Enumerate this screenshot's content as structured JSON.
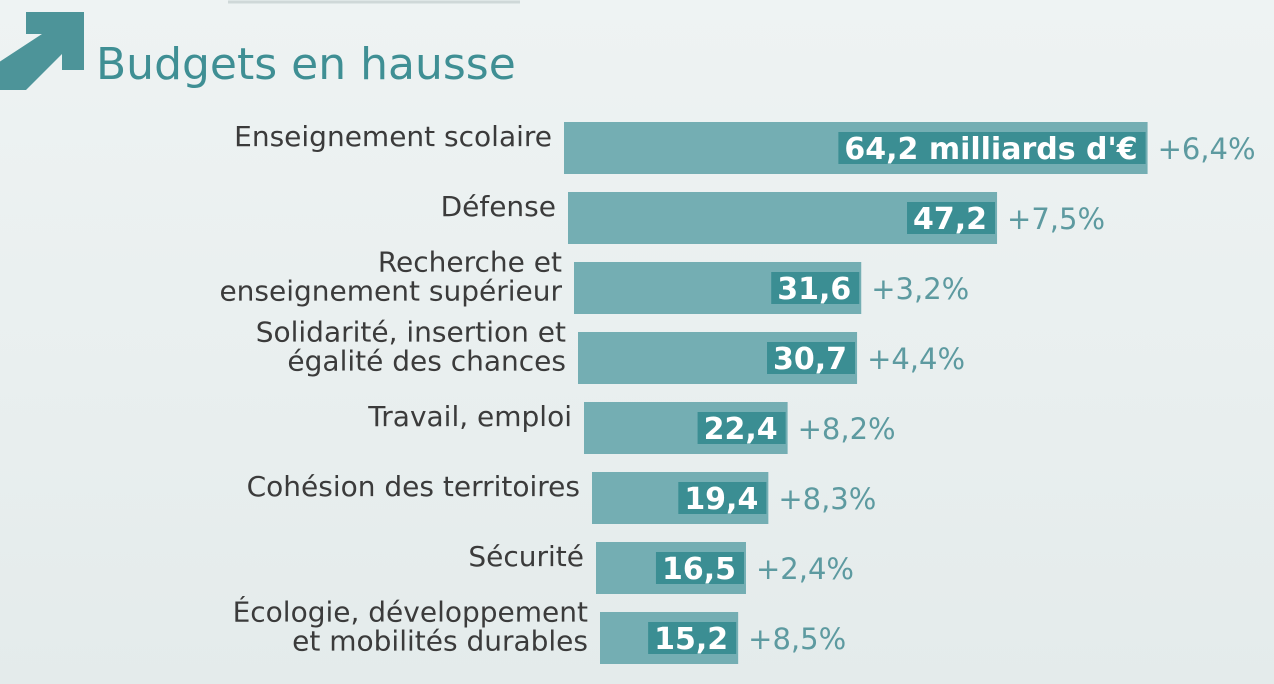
{
  "chart_data": {
    "type": "bar",
    "orientation": "horizontal",
    "title": "Budgets en hausse",
    "title_icon": "up-right-arrow-icon",
    "unit_label": "milliards d'€",
    "categories": [
      [
        "Enseignement scolaire"
      ],
      [
        "Défense"
      ],
      [
        "Recherche et",
        "enseignement supérieur"
      ],
      [
        "Solidarité, insertion et",
        "égalité des chances"
      ],
      [
        "Travail, emploi"
      ],
      [
        "Cohésion des territoires"
      ],
      [
        "Sécurité"
      ],
      [
        "Écologie, développement",
        "et mobilités durables"
      ]
    ],
    "values": [
      64.2,
      47.2,
      31.6,
      30.7,
      22.4,
      19.4,
      16.5,
      15.2
    ],
    "value_labels": [
      "64,2",
      "47,2",
      "31,6",
      "30,7",
      "22,4",
      "19,4",
      "16,5",
      "15,2"
    ],
    "changes": [
      "+6,4%",
      "+7,5%",
      "+3,2%",
      "+4,4%",
      "+8,2%",
      "+8,3%",
      "+2,4%",
      "+8,5%"
    ],
    "colors": {
      "bar": "#74aeb3",
      "value_box": "#3b8e93",
      "title": "#3f8f94",
      "change": "#5d9aa0"
    },
    "legend": "none",
    "grid": false
  }
}
